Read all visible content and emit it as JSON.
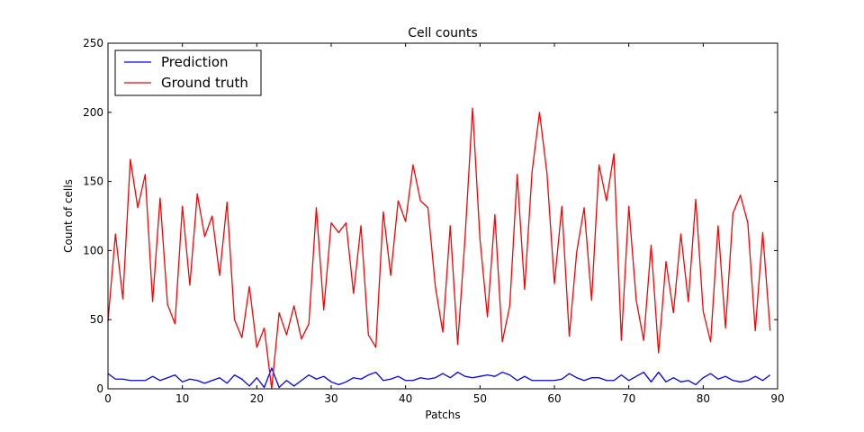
{
  "chart_data": {
    "type": "line",
    "title": "Cell counts",
    "xlabel": "Patchs",
    "ylabel": "Count of cells",
    "xlim": [
      0,
      90
    ],
    "ylim": [
      0,
      250
    ],
    "xticks": [
      0,
      10,
      20,
      30,
      40,
      50,
      60,
      70,
      80,
      90
    ],
    "yticks": [
      0,
      50,
      100,
      150,
      200,
      250
    ],
    "grid": false,
    "legend_position": "top-left",
    "x": [
      0,
      1,
      2,
      3,
      4,
      5,
      6,
      7,
      8,
      9,
      10,
      11,
      12,
      13,
      14,
      15,
      16,
      17,
      18,
      19,
      20,
      21,
      22,
      23,
      24,
      25,
      26,
      27,
      28,
      29,
      30,
      31,
      32,
      33,
      34,
      35,
      36,
      37,
      38,
      39,
      40,
      41,
      42,
      43,
      44,
      45,
      46,
      47,
      48,
      49,
      50,
      51,
      52,
      53,
      54,
      55,
      56,
      57,
      58,
      59,
      60,
      61,
      62,
      63,
      64,
      65,
      66,
      67,
      68,
      69,
      70,
      71,
      72,
      73,
      74,
      75,
      76,
      77,
      78,
      79,
      80,
      81,
      82,
      83,
      84,
      85,
      86,
      87,
      88,
      89
    ],
    "series": [
      {
        "name": "Prediction",
        "color": "#0000ff",
        "values": [
          11,
          7,
          7,
          6,
          6,
          6,
          9,
          6,
          8,
          10,
          5,
          7,
          6,
          4,
          6,
          8,
          4,
          10,
          7,
          2,
          8,
          1,
          15,
          1,
          6,
          2,
          6,
          10,
          7,
          9,
          5,
          3,
          5,
          8,
          7,
          10,
          12,
          6,
          7,
          9,
          6,
          6,
          8,
          7,
          8,
          11,
          8,
          12,
          9,
          8,
          9,
          10,
          9,
          12,
          10,
          6,
          9,
          6,
          6,
          6,
          6,
          7,
          11,
          8,
          6,
          8,
          8,
          6,
          6,
          10,
          6,
          9,
          12,
          5,
          12,
          5,
          8,
          5,
          6,
          3,
          8,
          11,
          7,
          9,
          6,
          5,
          6,
          9,
          6,
          10
        ]
      },
      {
        "name": "Ground truth",
        "color": "#ff0000",
        "values": [
          49,
          112,
          65,
          166,
          131,
          155,
          63,
          138,
          61,
          47,
          132,
          75,
          141,
          110,
          125,
          82,
          135,
          50,
          37,
          74,
          30,
          44,
          0,
          55,
          39,
          60,
          36,
          47,
          131,
          57,
          120,
          113,
          120,
          69,
          118,
          39,
          30,
          128,
          82,
          136,
          121,
          162,
          136,
          131,
          74,
          41,
          118,
          32,
          110,
          203,
          108,
          52,
          126,
          34,
          60,
          155,
          72,
          157,
          200,
          156,
          76,
          132,
          38,
          99,
          131,
          64,
          162,
          136,
          170,
          35,
          132,
          64,
          35,
          104,
          26,
          92,
          55,
          112,
          63,
          137,
          56,
          34,
          118,
          44,
          127,
          140,
          120,
          42,
          113,
          42
        ]
      }
    ]
  }
}
